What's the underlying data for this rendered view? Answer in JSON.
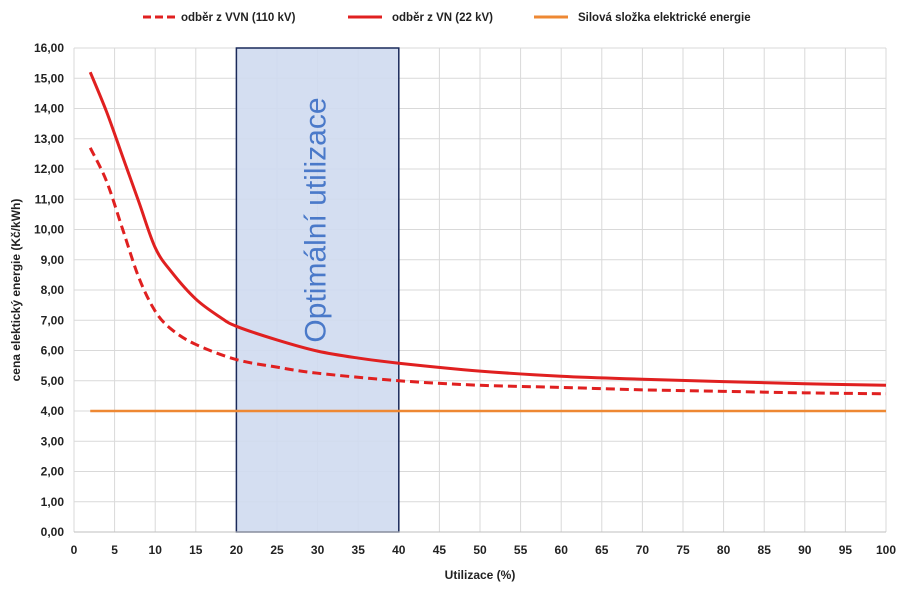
{
  "chart_data": {
    "type": "line",
    "xlabel": "Utilizace (%)",
    "ylabel": "cena elektický energie (Kč/kWh)",
    "xlim": [
      0,
      100
    ],
    "ylim": [
      0,
      16
    ],
    "x_ticks": [
      0,
      5,
      10,
      15,
      20,
      25,
      30,
      35,
      40,
      45,
      50,
      55,
      60,
      65,
      70,
      75,
      80,
      85,
      90,
      95,
      100
    ],
    "y_ticks": [
      "0,00",
      "1,00",
      "2,00",
      "3,00",
      "4,00",
      "5,00",
      "6,00",
      "7,00",
      "8,00",
      "9,00",
      "10,00",
      "11,00",
      "12,00",
      "13,00",
      "14,00",
      "15,00",
      "16,00"
    ],
    "grid": true,
    "legend_position": "top",
    "series": [
      {
        "name": "odběr z VVN (110 kV)",
        "color": "#e02020",
        "style": "dashed",
        "x": [
          2,
          4,
          6,
          8,
          10,
          12,
          15,
          20,
          25,
          30,
          40,
          50,
          60,
          70,
          80,
          90,
          100
        ],
        "y": [
          12.7,
          11.6,
          10.0,
          8.4,
          7.3,
          6.7,
          6.2,
          5.7,
          5.45,
          5.25,
          5.0,
          4.85,
          4.78,
          4.7,
          4.65,
          4.6,
          4.57
        ]
      },
      {
        "name": "odběr z VN (22 kV)",
        "color": "#e02020",
        "style": "solid",
        "x": [
          2,
          4,
          6,
          8,
          10,
          12,
          15,
          18,
          20,
          25,
          30,
          35,
          40,
          50,
          60,
          70,
          80,
          90,
          100
        ],
        "y": [
          15.2,
          13.9,
          12.4,
          10.9,
          9.4,
          8.6,
          7.7,
          7.1,
          6.8,
          6.35,
          5.98,
          5.75,
          5.58,
          5.32,
          5.15,
          5.05,
          4.97,
          4.9,
          4.85
        ]
      },
      {
        "name": "Silová složka elektrické energie",
        "color": "#ee8833",
        "style": "solid",
        "x": [
          2,
          100
        ],
        "y": [
          4.0,
          4.0
        ]
      }
    ],
    "highlight_region": {
      "x_range": [
        20,
        40
      ],
      "label": "Optimální utilizace",
      "fill": "#cfdaf0",
      "stroke": "#1a2a5a"
    }
  }
}
